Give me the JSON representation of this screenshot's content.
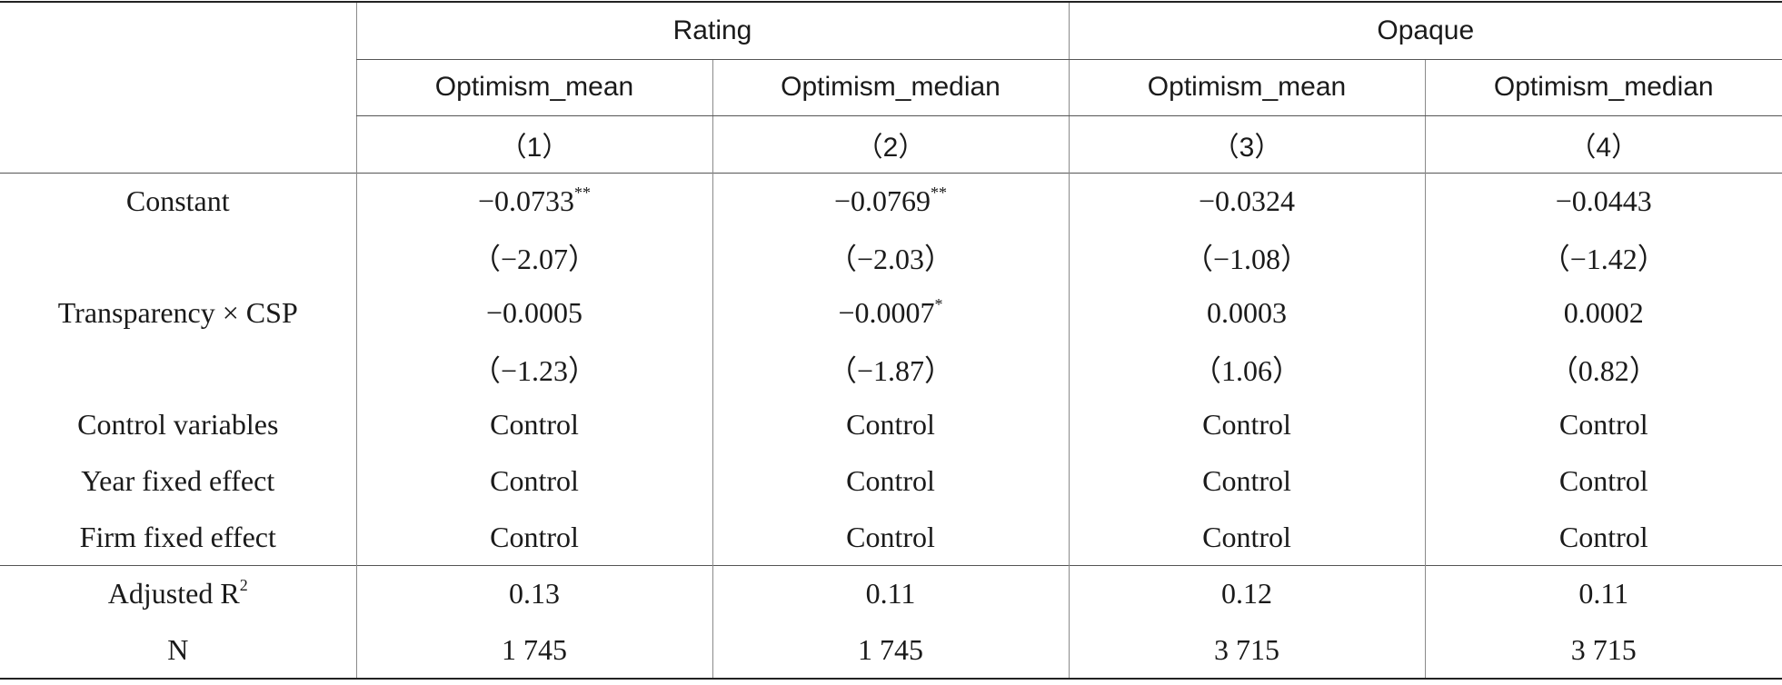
{
  "header": {
    "groups": [
      "Rating",
      "Opaque"
    ],
    "columns": [
      "Optimism_mean",
      "Optimism_median",
      "Optimism_mean",
      "Optimism_median"
    ],
    "numbers": [
      "（1）",
      "（2）",
      "（3）",
      "（4）"
    ]
  },
  "rows": {
    "constant": {
      "label": "Constant",
      "coef": [
        "−0.0733",
        "−0.0769",
        "−0.0324",
        "−0.0443"
      ],
      "stars": [
        "**",
        "**",
        "",
        ""
      ],
      "t": [
        "（−2.07）",
        "（−2.03）",
        "（−1.08）",
        "（−1.42）"
      ]
    },
    "interaction": {
      "label": "Transparency × CSP",
      "coef": [
        "−0.0005",
        "−0.0007",
        "0.0003",
        "0.0002"
      ],
      "stars": [
        "",
        "*",
        "",
        ""
      ],
      "t": [
        "（−1.23）",
        "（−1.87）",
        "（1.06）",
        "（0.82）"
      ]
    },
    "controls": {
      "label": "Control variables",
      "values": [
        "Control",
        "Control",
        "Control",
        "Control"
      ]
    },
    "year_fe": {
      "label": "Year fixed effect",
      "values": [
        "Control",
        "Control",
        "Control",
        "Control"
      ]
    },
    "firm_fe": {
      "label": "Firm fixed effect",
      "values": [
        "Control",
        "Control",
        "Control",
        "Control"
      ]
    },
    "adj_r2": {
      "label": "Adjusted R",
      "label_sup": "2",
      "values": [
        "0.13",
        "0.11",
        "0.12",
        "0.11"
      ]
    },
    "n": {
      "label": "N",
      "values": [
        "1 745",
        "1 745",
        "3 715",
        "3 715"
      ]
    }
  }
}
